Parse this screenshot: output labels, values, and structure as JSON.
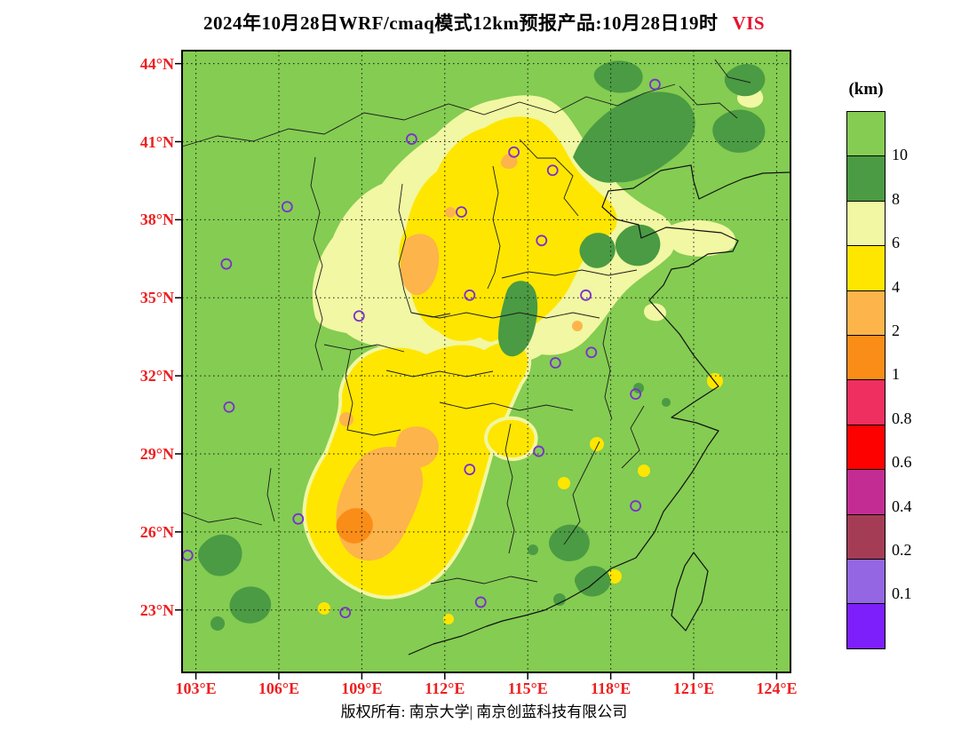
{
  "title": {
    "text": "2024年10月28日WRF/cmaq模式12km预报产品:10月28日19时",
    "variable": "VIS"
  },
  "footer": {
    "text": "版权所有: 南京大学| 南京创蓝科技有限公司"
  },
  "map": {
    "extent": {
      "lon_min": 102.5,
      "lon_max": 124.5,
      "lat_min": 20.6,
      "lat_max": 44.5
    },
    "grid_interval_deg": 3,
    "lat_tick_labels": [
      "44°N",
      "41°N",
      "38°N",
      "35°N",
      "32°N",
      "29°N",
      "26°N",
      "23°N"
    ],
    "lon_tick_labels": [
      "103°E",
      "106°E",
      "109°E",
      "112°E",
      "115°E",
      "118°E",
      "121°E",
      "124°E"
    ],
    "marker_color": "#7a2fd0",
    "city_markers_lonlat": [
      [
        119.6,
        43.2
      ],
      [
        110.8,
        41.1
      ],
      [
        114.5,
        40.6
      ],
      [
        115.9,
        39.9
      ],
      [
        112.6,
        38.3
      ],
      [
        106.3,
        38.5
      ],
      [
        115.5,
        37.2
      ],
      [
        104.1,
        36.3
      ],
      [
        112.9,
        35.1
      ],
      [
        117.1,
        35.1
      ],
      [
        108.9,
        34.3
      ],
      [
        117.3,
        32.9
      ],
      [
        116.0,
        32.5
      ],
      [
        118.9,
        31.3
      ],
      [
        104.2,
        30.8
      ],
      [
        115.4,
        29.1
      ],
      [
        112.9,
        28.4
      ],
      [
        118.9,
        27.0
      ],
      [
        106.7,
        26.5
      ],
      [
        102.7,
        25.1
      ],
      [
        113.3,
        23.3
      ],
      [
        108.4,
        22.9
      ]
    ]
  },
  "colorbar": {
    "unit": "(km)",
    "tick_labels": [
      "10",
      "8",
      "6",
      "4",
      "2",
      "1",
      "0.8",
      "0.6",
      "0.4",
      "0.2",
      "0.1"
    ],
    "segment_colors_top_to_bottom": [
      "#84cc52",
      "#4a9b43",
      "#f1f7a2",
      "#ffe600",
      "#fdb44b",
      "#fa8d17",
      "#ee2f5f",
      "#fd0100",
      "#c32d93",
      "#a53c55",
      "#9466e3",
      "#7d1ffa"
    ]
  },
  "colors": {
    "axis_label_red": "#ee1f1f",
    "title_variable_red": "#e8112d",
    "land_background_green": "#84cc52"
  }
}
